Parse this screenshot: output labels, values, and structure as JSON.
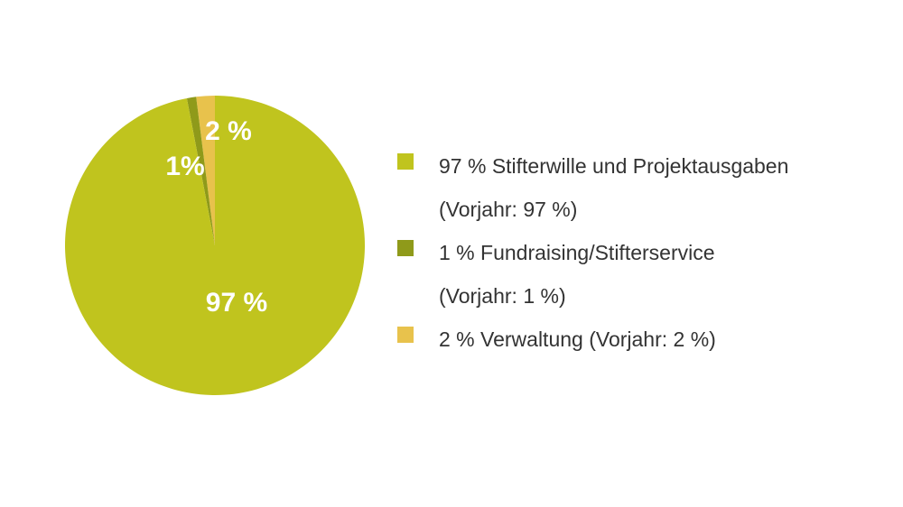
{
  "chart_data": {
    "type": "pie",
    "title": "",
    "slices": [
      {
        "label": "97 %",
        "value": 97,
        "color": "#c0c41e",
        "legend": "97 % Stifterwille und Projektausgaben",
        "legend_sub": "(Vorjahr: 97 %)"
      },
      {
        "label": "1%",
        "value": 1,
        "color": "#8f9a1a",
        "legend": "1 % Fundraising/Stifterservice",
        "legend_sub": "(Vorjahr: 1 %)"
      },
      {
        "label": "2 %",
        "value": 2,
        "color": "#e8c24c",
        "legend": "2 % Verwaltung (Vorjahr: 2 %)",
        "legend_sub": null
      }
    ],
    "legend_position": "right"
  }
}
